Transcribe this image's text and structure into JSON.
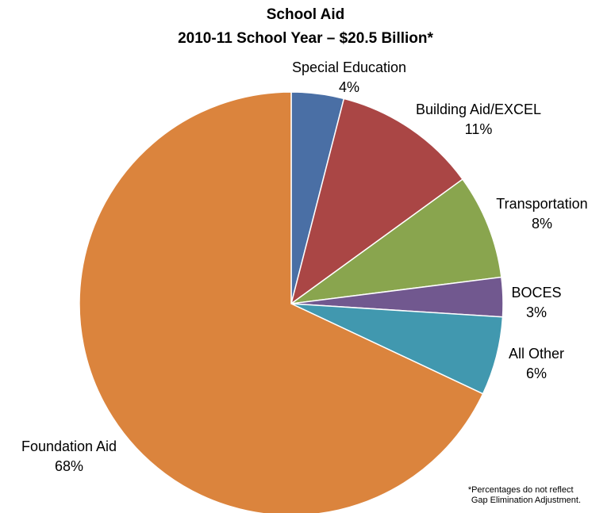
{
  "chart_data": {
    "type": "pie",
    "title": "School Aid",
    "subtitle": "2010-11 School Year – $20.5 Billion*",
    "slices": [
      {
        "label": "Special Education",
        "value": 4,
        "value_label": "4%",
        "color": "#4a6fa5"
      },
      {
        "label": "Building Aid/EXCEL",
        "value": 11,
        "value_label": "11%",
        "color": "#aa4645"
      },
      {
        "label": "Transportation",
        "value": 8,
        "value_label": "8%",
        "color": "#89a54e"
      },
      {
        "label": "BOCES",
        "value": 3,
        "value_label": "3%",
        "color": "#71588f"
      },
      {
        "label": "All Other",
        "value": 6,
        "value_label": "6%",
        "color": "#4198af"
      },
      {
        "label": "Foundation Aid",
        "value": 68,
        "value_label": "68%",
        "color": "#db843d"
      }
    ],
    "start_angle": "12 o'clock",
    "direction": "clockwise",
    "legend": "none",
    "footnote": [
      "*Percentages do not reflect",
      "Gap Elimination Adjustment."
    ]
  }
}
